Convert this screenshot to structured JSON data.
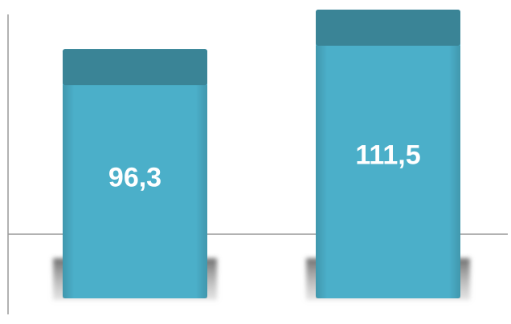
{
  "chart_data": {
    "type": "bar",
    "categories": [
      "",
      ""
    ],
    "values": [
      96.3,
      111.5
    ],
    "value_labels": [
      "96,3",
      "111,5"
    ],
    "title": "",
    "xlabel": "",
    "ylabel": "",
    "grid": false,
    "legend": "none",
    "colors": {
      "bar_face": "#4bafc9",
      "bar_top": "#3a8496",
      "axis": "#999999",
      "shadow": "#7a7a7a",
      "label": "#ffffff"
    }
  }
}
